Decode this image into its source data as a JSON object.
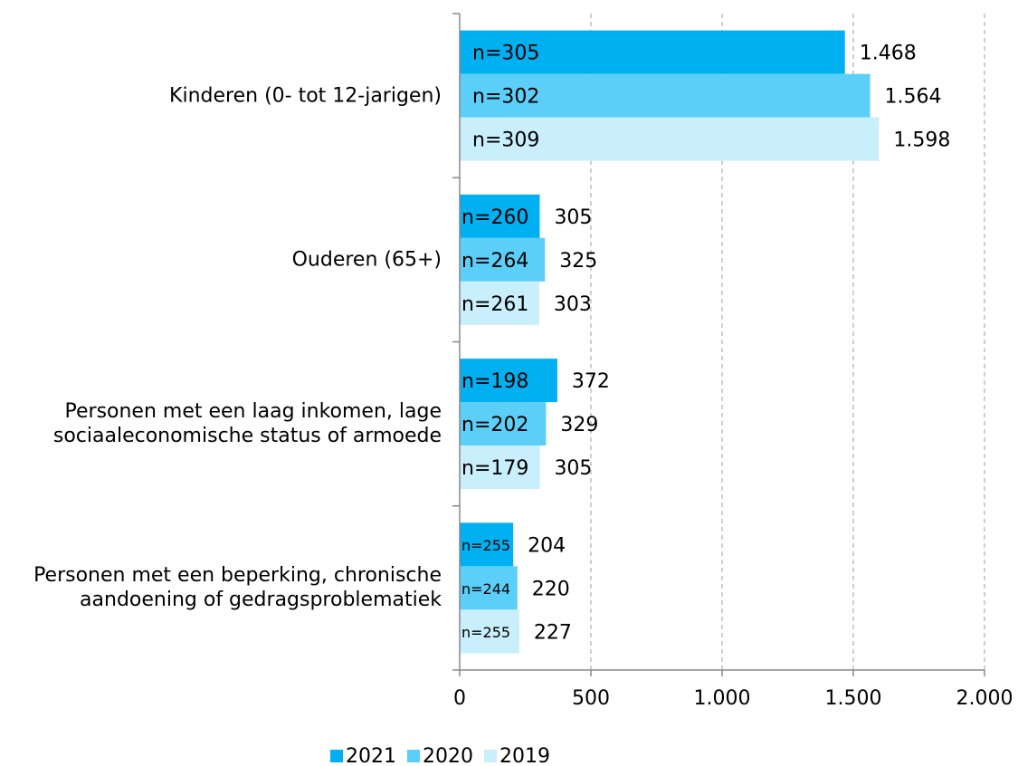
{
  "chart_data": {
    "type": "bar",
    "orientation": "horizontal",
    "categories": [
      "Kinderen (0- tot 12-jarigen)",
      "Ouderen (65+)",
      "Personen met een laag inkomen, lage\nsociaaleconomische status of armoede",
      "Personen met een beperking, chronische\naandoening of gedragsproblematiek"
    ],
    "series": [
      {
        "name": "2021",
        "color": "#00b0f0",
        "values": [
          1468,
          305,
          372,
          204
        ],
        "value_labels": [
          "1.468",
          "305",
          "372",
          "204"
        ],
        "annotations": [
          "n=305",
          "n=260",
          "n=198",
          "n=255"
        ]
      },
      {
        "name": "2020",
        "color": "#5bcff8",
        "values": [
          1564,
          325,
          329,
          220
        ],
        "value_labels": [
          "1.564",
          "325",
          "329",
          "220"
        ],
        "annotations": [
          "n=302",
          "n=264",
          "n=202",
          "n=244"
        ]
      },
      {
        "name": "2019",
        "color": "#c9eefc",
        "values": [
          1598,
          303,
          305,
          227
        ],
        "value_labels": [
          "1.598",
          "303",
          "305",
          "227"
        ],
        "annotations": [
          "n=309",
          "n=261",
          "n=179",
          "n=255"
        ]
      }
    ],
    "xlim": [
      0,
      2000
    ],
    "xticks": [
      0,
      500,
      {
        "value": 1000,
        "label": "1.000"
      },
      {
        "value": 1500,
        "label": "1.500"
      },
      {
        "value": 2000,
        "label": "2.000"
      }
    ],
    "grid": true,
    "legend": "bottom"
  }
}
